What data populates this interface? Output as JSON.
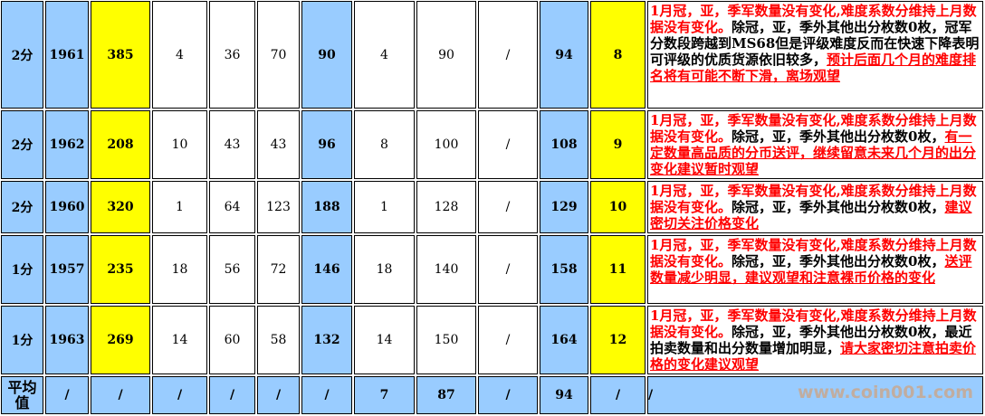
{
  "rows": [
    {
      "grade": "2分",
      "year": "1961",
      "total": "385",
      "c1": "4",
      "c2": "36",
      "c3": "70",
      "c4": "90",
      "c5": "4",
      "c6": "90",
      "c7": "/",
      "c8": "94",
      "rank": "8",
      "note": {
        "red1": "1月冠，亚，季军数量没有变化,难度系数分维持上月数据没有变化。",
        "black": "除冠，亚，季外其他出分枚数0枚，冠军分数段跨越到MS68但是评级难度反而在快速下降表明可评级的优质货源依旧较多，",
        "red2": "预计后面几个月的难度排名将有可能不断下滑，离场观望"
      }
    },
    {
      "grade": "2分",
      "year": "1962",
      "total": "208",
      "c1": "10",
      "c2": "43",
      "c3": "43",
      "c4": "96",
      "c5": "8",
      "c6": "100",
      "c7": "/",
      "c8": "108",
      "rank": "9",
      "note": {
        "red1": "1月冠，亚，季军数量没有变化,难度系数分维持上月数据没有变化。",
        "black": "除冠，亚，季外其他出分枚数0枚，",
        "red2": "有一定数量高品质的分币送评，继续留意未来几个月的出分变化建议暂时观望"
      }
    },
    {
      "grade": "2分",
      "year": "1960",
      "total": "320",
      "c1": "1",
      "c2": "64",
      "c3": "123",
      "c4": "188",
      "c5": "1",
      "c6": "128",
      "c7": "/",
      "c8": "129",
      "rank": "10",
      "note": {
        "red1": "1月冠，亚，季军数量没有变化,难度系数分维持上月数据没有变化。",
        "black": "除冠，亚，季外其他出分枚数0枚，",
        "red2": "建议密切关注价格变化"
      }
    },
    {
      "grade": "1分",
      "year": "1957",
      "total": "235",
      "c1": "18",
      "c2": "56",
      "c3": "72",
      "c4": "146",
      "c5": "18",
      "c6": "140",
      "c7": "/",
      "c8": "158",
      "rank": "11",
      "note": {
        "red1": "1月冠，亚，季军数量没有变化,难度系数分维持上月数据没有变化。",
        "black": "除冠，亚，季外其他出分枚数0枚，",
        "red2": "送评数量减少明显，建议观望和注意裸币价格的变化"
      }
    },
    {
      "grade": "1分",
      "year": "1963",
      "total": "269",
      "c1": "14",
      "c2": "60",
      "c3": "58",
      "c4": "132",
      "c5": "14",
      "c6": "150",
      "c7": "/",
      "c8": "164",
      "rank": "12",
      "note": {
        "red1": "1月冠，亚，季军数量没有变化,难度系数分维持上月数据没有变化。",
        "black": "除冠，亚，季外其他出分枚数0枚，最近拍卖数量和出分数量增加明显，",
        "red2": "请大家密切注意拍卖价格的变化建议观望"
      }
    }
  ],
  "average": {
    "label": "平均值",
    "cells": [
      "/",
      "/",
      "/",
      "/",
      "/",
      "/",
      "7",
      "87",
      "/",
      "94",
      "/",
      "/"
    ]
  },
  "watermark": "www.coin001.com",
  "colors": {
    "blue": "#99ccff",
    "yellow": "#ffff00",
    "red": "#ff0000"
  }
}
